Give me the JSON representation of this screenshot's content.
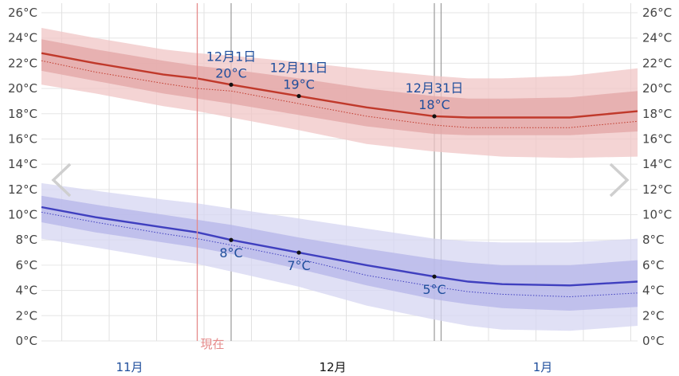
{
  "nav": {
    "prev_icon": "chevron-left-icon",
    "next_icon": "chevron-right-icon"
  },
  "now_label": "現在",
  "chart_data": {
    "type": "area",
    "ylim": [
      0,
      26
    ],
    "yticks": [
      "0°C",
      "2°C",
      "4°C",
      "6°C",
      "8°C",
      "10°C",
      "12°C",
      "14°C",
      "16°C",
      "18°C",
      "20°C",
      "22°C",
      "24°C",
      "26°C"
    ],
    "months": [
      {
        "label": "11月",
        "day": -15,
        "color": "#1f4e9c"
      },
      {
        "label": "12月",
        "day": 15,
        "color": "#111111"
      },
      {
        "label": "1月",
        "day": 46,
        "color": "#1f4e9c"
      }
    ],
    "x_range_days_from_dec1": [
      -28,
      60
    ],
    "now_day": -5,
    "colors": {
      "high": "#c0392b",
      "low": "#3f3fbf",
      "anno": "#1f4e9c",
      "now": "#e58a8a"
    },
    "series": [
      {
        "key": "high",
        "x": [
          -28,
          -20,
          -10,
          -5,
          0,
          10,
          20,
          30,
          35,
          40,
          50,
          60
        ],
        "mean": [
          22.8,
          22.0,
          21.1,
          20.8,
          20.3,
          19.4,
          18.5,
          17.8,
          17.7,
          17.7,
          17.7,
          18.2
        ],
        "median": [
          22.2,
          21.3,
          20.4,
          20.0,
          19.8,
          18.8,
          17.8,
          17.1,
          16.9,
          16.9,
          16.9,
          17.4
        ],
        "p25": [
          21.4,
          20.6,
          19.6,
          19.2,
          18.8,
          17.9,
          17.0,
          16.4,
          16.3,
          16.3,
          16.3,
          16.6
        ],
        "p75": [
          23.9,
          23.1,
          22.2,
          21.8,
          21.5,
          20.8,
          20.0,
          19.4,
          19.2,
          19.2,
          19.3,
          19.8
        ],
        "p10": [
          20.3,
          19.6,
          18.6,
          18.2,
          17.7,
          16.7,
          15.6,
          15.0,
          14.8,
          14.6,
          14.5,
          14.6
        ],
        "p90": [
          24.8,
          24.0,
          23.1,
          22.8,
          22.6,
          22.1,
          21.5,
          21.0,
          20.8,
          20.8,
          21.0,
          21.6
        ]
      },
      {
        "key": "low",
        "x": [
          -28,
          -20,
          -10,
          -5,
          0,
          10,
          20,
          30,
          35,
          40,
          50,
          60
        ],
        "mean": [
          10.6,
          9.8,
          9.0,
          8.6,
          8.0,
          7.0,
          6.0,
          5.1,
          4.7,
          4.5,
          4.4,
          4.7
        ],
        "median": [
          10.2,
          9.4,
          8.5,
          8.1,
          7.6,
          6.5,
          5.2,
          4.3,
          3.9,
          3.7,
          3.5,
          3.8
        ],
        "p25": [
          9.4,
          8.6,
          7.8,
          7.4,
          6.9,
          5.7,
          4.4,
          3.3,
          2.9,
          2.6,
          2.4,
          2.7
        ],
        "p75": [
          11.5,
          10.8,
          10.0,
          9.6,
          9.2,
          8.2,
          7.3,
          6.5,
          6.2,
          6.0,
          6.0,
          6.4
        ],
        "p10": [
          8.1,
          7.4,
          6.5,
          6.1,
          5.5,
          4.3,
          2.8,
          1.7,
          1.2,
          0.9,
          0.8,
          1.2
        ],
        "p90": [
          12.5,
          11.9,
          11.2,
          10.9,
          10.5,
          9.7,
          8.9,
          8.1,
          7.9,
          7.8,
          7.8,
          8.1
        ]
      }
    ],
    "annotations": [
      {
        "day": 0,
        "series": "high",
        "value": 20.3,
        "date": "12月1日",
        "temp": "20°C"
      },
      {
        "day": 10,
        "series": "high",
        "value": 19.4,
        "date": "12月11日",
        "temp": "19°C"
      },
      {
        "day": 30,
        "series": "high",
        "value": 17.8,
        "date": "12月31日",
        "temp": "18°C"
      },
      {
        "day": 0,
        "series": "low",
        "value": 8.0,
        "temp": "8°C"
      },
      {
        "day": 10,
        "series": "low",
        "value": 7.0,
        "temp": "7°C"
      },
      {
        "day": 30,
        "series": "low",
        "value": 5.1,
        "temp": "5°C"
      }
    ]
  }
}
